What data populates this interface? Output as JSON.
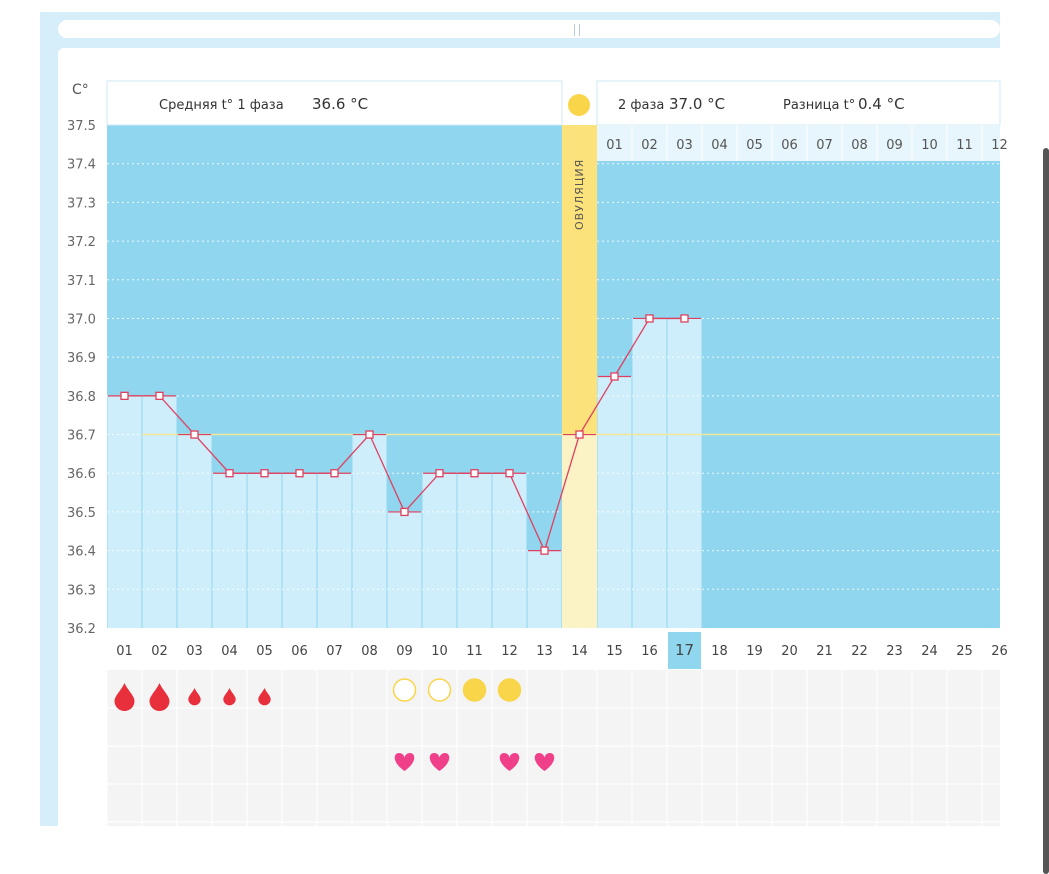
{
  "header": {
    "unit_label": "C°",
    "phase1_text": "Средняя t° 1 фаза",
    "phase1_value": "36.6 °C",
    "phase2_text": "2 фаза",
    "phase2_value": "37.0 °C",
    "diff_text": "Разница t°",
    "diff_value": "0.4 °C",
    "ovulation_label": "ОВУЛЯЦИЯ"
  },
  "colors": {
    "sky": "#8fd6ee",
    "bar": "#cdeefa",
    "line": "#e0405f",
    "ovulation": "#fbe27a",
    "ovulation_pale": "#fbf3c6",
    "average_line": "#f4e79a",
    "today": "#8fd6ee",
    "blood": "#e8303c",
    "heart": "#f0408a",
    "sun": "#f9d54a"
  },
  "chart_data": {
    "type": "line",
    "title": "",
    "xlabel": "",
    "ylabel": "C°",
    "ylim": [
      36.2,
      37.5
    ],
    "yticks": [
      "37.5",
      "37.4",
      "37.3",
      "37.2",
      "37.1",
      "37.0",
      "36.9",
      "36.8",
      "36.7",
      "36.6",
      "36.5",
      "36.4",
      "36.3",
      "36.2"
    ],
    "grid": true,
    "days": [
      "01",
      "02",
      "03",
      "04",
      "05",
      "06",
      "07",
      "08",
      "09",
      "10",
      "11",
      "12",
      "13",
      "14",
      "15",
      "16",
      "17",
      "18",
      "19",
      "20",
      "21",
      "22",
      "23",
      "24",
      "25",
      "26"
    ],
    "current_day": "17",
    "ovulation_day": "14",
    "average_level": 36.7,
    "series": [
      {
        "values": [
          36.8,
          36.8,
          36.7,
          36.6,
          36.6,
          36.6,
          36.6,
          36.7,
          36.5,
          36.6,
          36.6,
          36.6,
          36.4,
          36.7,
          36.85,
          37.0,
          37.0
        ]
      }
    ],
    "phase2_day_numbers": [
      "01",
      "02",
      "03",
      "04",
      "05",
      "06",
      "07",
      "08",
      "09",
      "10",
      "11",
      "12"
    ],
    "markers": {
      "bleeding": [
        {
          "day": "01",
          "level": "large"
        },
        {
          "day": "02",
          "level": "large"
        },
        {
          "day": "03",
          "level": "small"
        },
        {
          "day": "04",
          "level": "small"
        },
        {
          "day": "05",
          "level": "small"
        }
      ],
      "circles": [
        {
          "day": "09",
          "filled": false
        },
        {
          "day": "10",
          "filled": false
        },
        {
          "day": "11",
          "filled": true
        },
        {
          "day": "12",
          "filled": true
        }
      ],
      "hearts": [
        "09",
        "10",
        "12",
        "13"
      ]
    }
  }
}
